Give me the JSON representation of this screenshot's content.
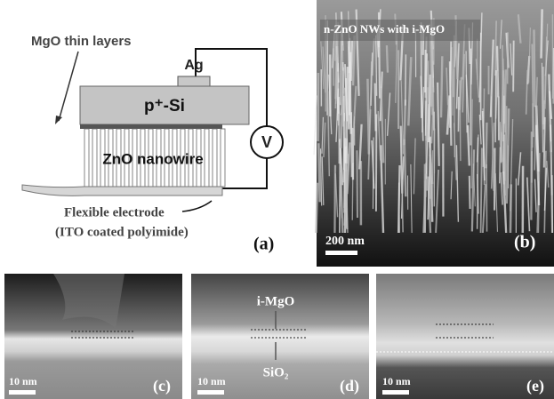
{
  "panel_a": {
    "mgo_label": "MgO thin layers",
    "ag_label": "Ag",
    "si_label": "p⁺-Si",
    "voltmeter_label": "V",
    "zno_label": "ZnO nanowire",
    "electrode_line1": "Flexible electrode",
    "electrode_line2": "(ITO coated polyimide)",
    "panel_label": "(a)"
  },
  "panel_b": {
    "caption": "n-ZnO NWs with i-MgO",
    "scale_bar": "200 nm",
    "panel_label": "(b)"
  },
  "panel_c": {
    "scale_bar": "10 nm",
    "panel_label": "(c)"
  },
  "panel_d": {
    "scale_bar": "10 nm",
    "mgo_label": "i-MgO",
    "sio2_label": "SiO₂",
    "panel_label": "(d)"
  },
  "panel_e": {
    "scale_bar": "10 nm",
    "panel_label": "(e)"
  }
}
